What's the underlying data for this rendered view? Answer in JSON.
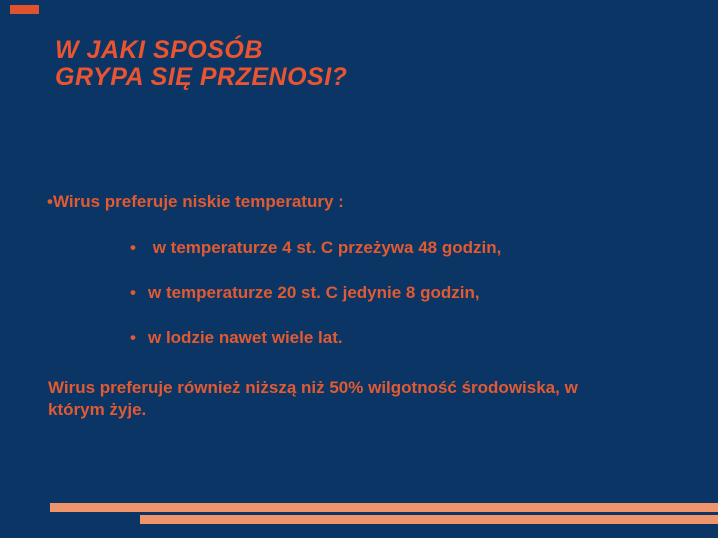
{
  "slide": {
    "type": "presentation-slide",
    "colors": {
      "background": "#0B3564",
      "title_text": "#EA5430",
      "body_text": "#E25A32",
      "bottom_bars": "#F0946B",
      "corner_accent": "#E0532E"
    },
    "title": {
      "line1": "W JAKI SPOSÓB",
      "line2": "GRYPA SIĘ PRZENOSI?"
    },
    "bullets": {
      "main": {
        "marker": "•",
        "text": "Wirus preferuje niskie temperatury :"
      },
      "sub": [
        {
          "marker": "•",
          "text": " w temperaturze 4 st. C przeżywa 48 godzin,"
        },
        {
          "marker": "•",
          "text": "w temperaturze 20 st. C jedynie 8 godzin,"
        },
        {
          "marker": "•",
          "text": "w lodzie nawet wiele lat."
        }
      ]
    },
    "paragraph": {
      "line1": "Wirus preferuje również niższą niż 50% wilgotność środowiska, w",
      "line2": "którym żyje."
    }
  }
}
